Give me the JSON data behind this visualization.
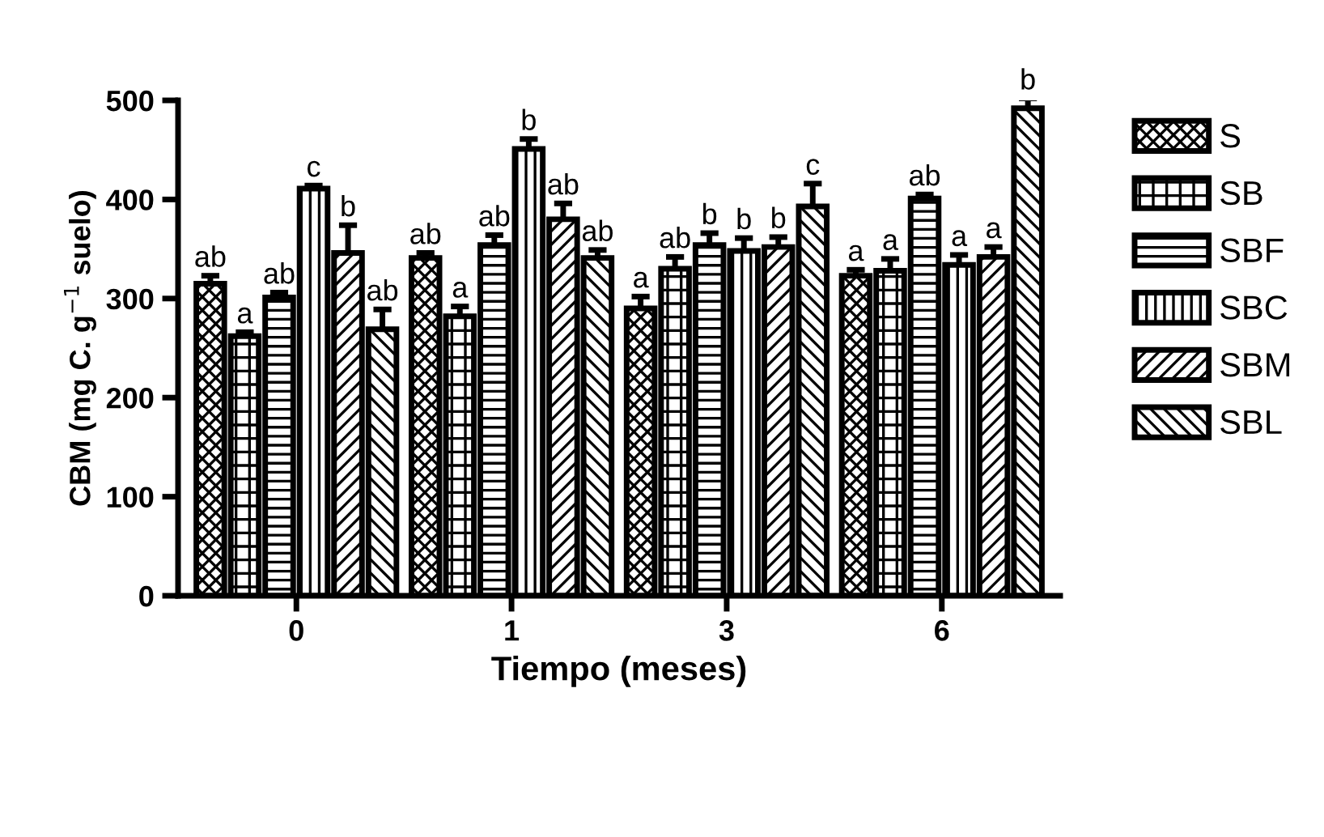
{
  "chart_data": {
    "type": "bar",
    "xlabel": "Tiempo (meses)",
    "ylabel": "CBM (mg C. g$^{−1}$ suelo)",
    "categories": [
      "0",
      "1",
      "3",
      "6"
    ],
    "ylim": [
      0,
      500
    ],
    "yticks": [
      0,
      100,
      200,
      300,
      400,
      500
    ],
    "legend": "top right",
    "grid": false,
    "series": [
      {
        "name": "S",
        "color": "#000000",
        "values": [
          315,
          341,
          290,
          323
        ],
        "errors": [
          8,
          5,
          12,
          6
        ],
        "value_labels": [
          "ab",
          "ab",
          "a",
          "a"
        ]
      },
      {
        "name": "SB",
        "color": "#000000",
        "values": [
          262,
          282,
          330,
          328
        ],
        "errors": [
          4,
          10,
          12,
          12
        ],
        "value_labels": [
          "a",
          "a",
          "ab",
          "a"
        ]
      },
      {
        "name": "SBF",
        "color": "#000000",
        "values": [
          301,
          354,
          354,
          401
        ],
        "errors": [
          5,
          10,
          12,
          4
        ],
        "value_labels": [
          "ab",
          "ab",
          "b",
          "ab"
        ]
      },
      {
        "name": "SBC",
        "color": "#000000",
        "values": [
          411,
          451,
          348,
          334
        ],
        "errors": [
          3,
          10,
          13,
          10
        ],
        "value_labels": [
          "c",
          "b",
          "b",
          "a"
        ]
      },
      {
        "name": "SBM",
        "color": "#000000",
        "values": [
          346,
          380,
          352,
          342
        ],
        "errors": [
          28,
          16,
          10,
          10
        ],
        "value_labels": [
          "b",
          "ab",
          "b",
          "a"
        ]
      },
      {
        "name": "SBL",
        "color": "#000000",
        "values": [
          269,
          341,
          393,
          492
        ],
        "errors": [
          20,
          8,
          23,
          10
        ],
        "value_labels": [
          "ab",
          "ab",
          "c",
          "b"
        ]
      }
    ]
  }
}
